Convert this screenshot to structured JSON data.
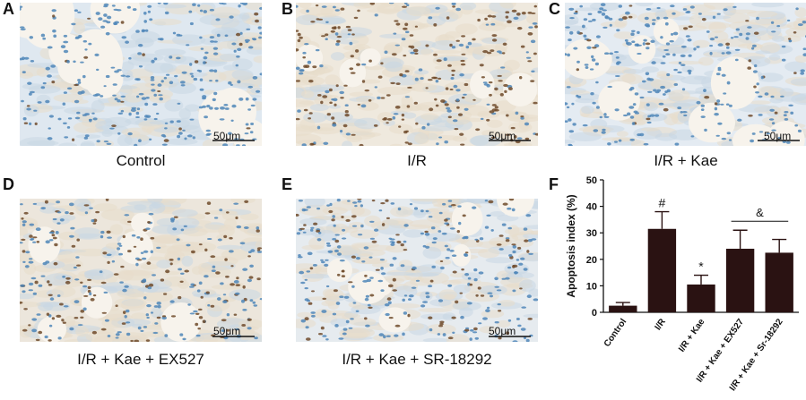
{
  "panels": [
    {
      "letter": "A",
      "caption": "Control",
      "scale": "50μm"
    },
    {
      "letter": "B",
      "caption": "I/R",
      "scale": "50μm"
    },
    {
      "letter": "C",
      "caption": "I/R + Kae",
      "scale": "50μm"
    },
    {
      "letter": "D",
      "caption": "I/R + Kae + EX527",
      "scale": "50μm"
    },
    {
      "letter": "E",
      "caption": "I/R + Kae + SR-18292",
      "scale": "50μm"
    }
  ],
  "chart_panel_letter": "F",
  "colors": {
    "bar": "#2a1212",
    "tissue_background": "#f7f3ec",
    "nucleus_blue": "#4f86b8",
    "nucleus_brown": "#6e4a2a"
  },
  "chart_data": {
    "type": "bar",
    "categories": [
      "Control",
      "I/R",
      "I/R + Kae",
      "I/R + Kae + EX527",
      "I/R + Kae + Sr-18292"
    ],
    "values": [
      2.5,
      31.5,
      10.5,
      24,
      22.5
    ],
    "errors": [
      1.2,
      6.5,
      3.5,
      7,
      5
    ],
    "ylabel": "Apoptosis index (%)",
    "ylim": [
      0,
      50
    ],
    "yticks": [
      0,
      10,
      20,
      30,
      40,
      50
    ],
    "annotations": [
      {
        "text": "#",
        "category_index": 1
      },
      {
        "text": "*",
        "category_index": 2
      },
      {
        "text": "&",
        "category_indices": [
          3,
          4
        ]
      }
    ],
    "grid": false
  }
}
